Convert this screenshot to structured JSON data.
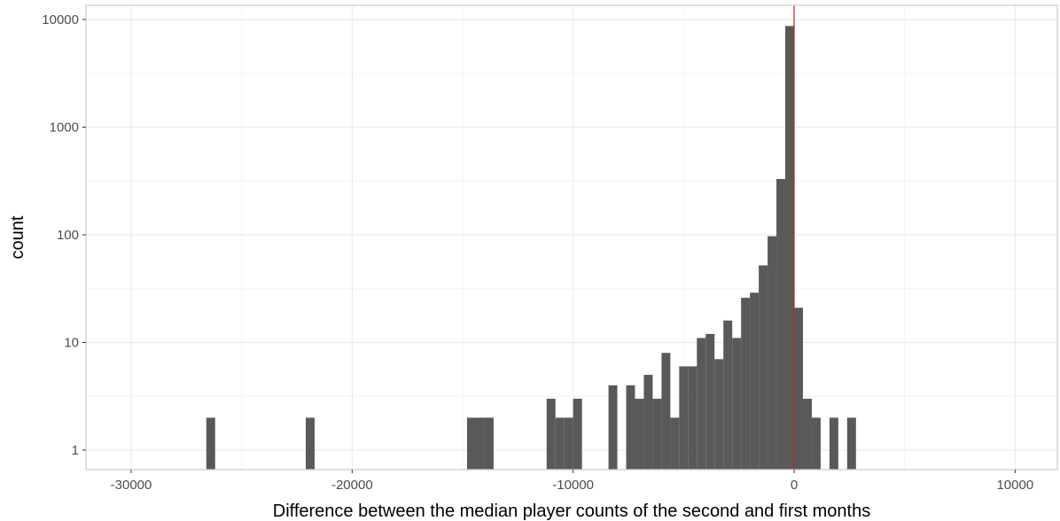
{
  "chart_data": {
    "type": "bar",
    "subtype": "histogram",
    "xlabel": "Difference between the median player counts of the second and first months",
    "ylabel": "count",
    "y_scale": "log10",
    "xlim": [
      -32000,
      12000
    ],
    "ylim": [
      0.82,
      12000
    ],
    "x_ticks": [
      -30000,
      -20000,
      -10000,
      0,
      10000
    ],
    "x_tick_labels": [
      "-30000",
      "-20000",
      "-10000",
      "0",
      "10000"
    ],
    "y_ticks": [
      1,
      10,
      100,
      1000,
      10000
    ],
    "y_tick_labels": [
      "1",
      "10",
      "100",
      "1000",
      "10000"
    ],
    "bin_width": 400,
    "grid": true,
    "colors": {
      "bar": "#595959",
      "vline": "#cc2222",
      "grid_major": "#ebebeb",
      "grid_minor": "#f3f3f3",
      "panel_border": "#cccccc"
    },
    "vline_x": 0,
    "bins": [
      {
        "x": -26400,
        "count": 2
      },
      {
        "x": -21900,
        "count": 2
      },
      {
        "x": -14600,
        "count": 2
      },
      {
        "x": -14200,
        "count": 2
      },
      {
        "x": -13800,
        "count": 2
      },
      {
        "x": -11000,
        "count": 3
      },
      {
        "x": -10600,
        "count": 2
      },
      {
        "x": -10200,
        "count": 2
      },
      {
        "x": -9800,
        "count": 3
      },
      {
        "x": -8200,
        "count": 4
      },
      {
        "x": -7400,
        "count": 4
      },
      {
        "x": -7000,
        "count": 3
      },
      {
        "x": -6600,
        "count": 5
      },
      {
        "x": -6200,
        "count": 3
      },
      {
        "x": -5800,
        "count": 8
      },
      {
        "x": -5400,
        "count": 2
      },
      {
        "x": -5000,
        "count": 6
      },
      {
        "x": -4600,
        "count": 6
      },
      {
        "x": -4200,
        "count": 11
      },
      {
        "x": -3800,
        "count": 12
      },
      {
        "x": -3400,
        "count": 7
      },
      {
        "x": -3000,
        "count": 16
      },
      {
        "x": -2600,
        "count": 11
      },
      {
        "x": -2200,
        "count": 26
      },
      {
        "x": -1800,
        "count": 29
      },
      {
        "x": -1400,
        "count": 52
      },
      {
        "x": -1000,
        "count": 97
      },
      {
        "x": -600,
        "count": 330
      },
      {
        "x": -200,
        "count": 8700
      },
      {
        "x": 200,
        "count": 21
      },
      {
        "x": 600,
        "count": 3
      },
      {
        "x": 1000,
        "count": 2
      },
      {
        "x": 1800,
        "count": 2
      },
      {
        "x": 2600,
        "count": 2
      }
    ]
  }
}
